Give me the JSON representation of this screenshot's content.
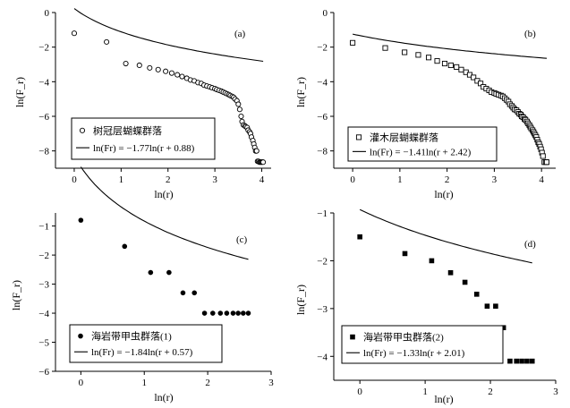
{
  "chart_data": [
    {
      "type": "scatter",
      "panel_label": "(a)",
      "xlabel": "ln(r)",
      "ylabel": "ln(F_r)",
      "xlim": [
        -0.4,
        4.2
      ],
      "ylim": [
        -9,
        0
      ],
      "xticks": [
        "0",
        "1",
        "2",
        "3",
        "4"
      ],
      "yticks": [
        "0",
        "−2",
        "−4",
        "−6",
        "−8"
      ],
      "marker": "open-circle",
      "legend": {
        "marker_label": "树冠层蝴蝶群落",
        "line_label": "ln(Fr) = −1.77ln(r + 0.88)"
      },
      "fit": {
        "a": -1.77,
        "b": 0.88
      },
      "series": [
        {
          "x": [
            0,
            0.69,
            1.1,
            1.39,
            1.61,
            1.79,
            1.95,
            2.08,
            2.2,
            2.3,
            2.4,
            2.48,
            2.56,
            2.64,
            2.71,
            2.77,
            2.83,
            2.89,
            2.94,
            3.0,
            3.04,
            3.09,
            3.14,
            3.18,
            3.22,
            3.26,
            3.3,
            3.33,
            3.37,
            3.4,
            3.43,
            3.47,
            3.5,
            3.53,
            3.56,
            3.58,
            3.61,
            3.64,
            3.66,
            3.69,
            3.71,
            3.74,
            3.76,
            3.78,
            3.81,
            3.83,
            3.85,
            3.87,
            3.89,
            3.91,
            3.93,
            3.95,
            3.97,
            3.99,
            4.01,
            4.03
          ],
          "y": [
            -1.2,
            -1.7,
            -2.95,
            -3.05,
            -3.2,
            -3.3,
            -3.4,
            -3.5,
            -3.6,
            -3.7,
            -3.8,
            -3.9,
            -3.95,
            -4.05,
            -4.1,
            -4.2,
            -4.25,
            -4.3,
            -4.35,
            -4.4,
            -4.45,
            -4.5,
            -4.55,
            -4.6,
            -4.65,
            -4.7,
            -4.75,
            -4.8,
            -4.85,
            -4.9,
            -5.0,
            -5.1,
            -5.3,
            -5.6,
            -6.0,
            -6.3,
            -6.5,
            -6.55,
            -6.6,
            -6.65,
            -6.8,
            -6.9,
            -7.0,
            -7.2,
            -7.4,
            -7.6,
            -7.8,
            -8.0,
            -8.0,
            -8.6,
            -8.6,
            -8.65,
            -8.65,
            -8.65,
            -8.65,
            -8.65
          ]
        }
      ]
    },
    {
      "type": "scatter",
      "panel_label": "(b)",
      "xlabel": "ln(r)",
      "ylabel": "ln(F_r)",
      "xlim": [
        -0.4,
        4.3
      ],
      "ylim": [
        -9,
        0
      ],
      "xticks": [
        "0",
        "1",
        "2",
        "3",
        "4"
      ],
      "yticks": [
        "0",
        "−2",
        "−4",
        "−6",
        "−8"
      ],
      "marker": "open-square",
      "legend": {
        "marker_label": "灌木层蝴蝶群落",
        "line_label": "ln(Fr) = −1.41ln(r + 2.42)"
      },
      "fit": {
        "a": -1.41,
        "b": 2.42
      },
      "series": [
        {
          "x": [
            0,
            0.69,
            1.1,
            1.39,
            1.61,
            1.79,
            1.95,
            2.08,
            2.2,
            2.3,
            2.4,
            2.48,
            2.56,
            2.64,
            2.71,
            2.77,
            2.83,
            2.89,
            2.94,
            3.0,
            3.04,
            3.09,
            3.14,
            3.18,
            3.22,
            3.26,
            3.3,
            3.33,
            3.37,
            3.4,
            3.43,
            3.47,
            3.5,
            3.53,
            3.56,
            3.58,
            3.61,
            3.64,
            3.66,
            3.69,
            3.71,
            3.74,
            3.76,
            3.78,
            3.81,
            3.83,
            3.85,
            3.87,
            3.89,
            3.91,
            3.93,
            3.95,
            3.97,
            3.99,
            4.01,
            4.03,
            4.06,
            4.09,
            4.11
          ],
          "y": [
            -1.75,
            -2.05,
            -2.3,
            -2.45,
            -2.6,
            -2.8,
            -2.95,
            -3.05,
            -3.15,
            -3.3,
            -3.45,
            -3.6,
            -3.75,
            -3.95,
            -4.1,
            -4.3,
            -4.4,
            -4.5,
            -4.6,
            -4.65,
            -4.7,
            -4.75,
            -4.8,
            -4.85,
            -4.95,
            -5.05,
            -5.15,
            -5.3,
            -5.4,
            -5.5,
            -5.6,
            -5.65,
            -5.75,
            -5.85,
            -5.9,
            -6.0,
            -6.05,
            -6.15,
            -6.2,
            -6.3,
            -6.4,
            -6.5,
            -6.6,
            -6.7,
            -6.8,
            -6.9,
            -7.0,
            -7.1,
            -7.2,
            -7.35,
            -7.5,
            -7.6,
            -7.75,
            -7.9,
            -8.1,
            -8.3,
            -8.65,
            -8.65,
            -8.65
          ]
        }
      ]
    },
    {
      "type": "scatter",
      "panel_label": "(c)",
      "xlabel": "ln(r)",
      "ylabel": "ln(F_r)",
      "xlim": [
        -0.4,
        3.0
      ],
      "ylim": [
        -6,
        -0.55
      ],
      "xticks": [
        "0",
        "1",
        "2",
        "3"
      ],
      "yticks": [
        "−1",
        "−2",
        "−3",
        "−4",
        "−5",
        "−6"
      ],
      "marker": "filled-circle",
      "legend": {
        "marker_label": "海岩带甲虫群落(1)",
        "line_label": "ln(Fr) = −1.84ln(r + 0.57)"
      },
      "fit": {
        "a": -1.84,
        "b": 0.57
      },
      "series": [
        {
          "x": [
            0,
            0.69,
            1.1,
            1.39,
            1.61,
            1.79,
            1.95,
            2.08,
            2.2,
            2.3,
            2.4,
            2.48,
            2.56,
            2.64
          ],
          "y": [
            -0.8,
            -1.7,
            -2.6,
            -2.6,
            -3.3,
            -3.3,
            -4.0,
            -4.0,
            -4.0,
            -4.0,
            -4.0,
            -4.0,
            -4.0,
            -4.0
          ]
        }
      ]
    },
    {
      "type": "scatter",
      "panel_label": "(d)",
      "xlabel": "ln(r)",
      "ylabel": "ln(F_r)",
      "xlim": [
        -0.4,
        3.0
      ],
      "ylim": [
        -4.5,
        -1.0
      ],
      "xticks": [
        "0",
        "1",
        "2",
        "3"
      ],
      "yticks": [
        "−1",
        "−2",
        "−3",
        "−4"
      ],
      "marker": "filled-square",
      "legend": {
        "marker_label": "海岩带甲虫群落(2)",
        "line_label": "ln(Fr) = −1.33ln(r + 2.01)"
      },
      "fit": {
        "a": -1.33,
        "b": 2.01
      },
      "series": [
        {
          "x": [
            0,
            0.69,
            1.1,
            1.39,
            1.61,
            1.79,
            1.95,
            2.08,
            2.2,
            2.3,
            2.4,
            2.48,
            2.56,
            2.64
          ],
          "y": [
            -1.5,
            -1.85,
            -2.0,
            -2.25,
            -2.45,
            -2.7,
            -2.95,
            -2.95,
            -3.4,
            -4.1,
            -4.1,
            -4.1,
            -4.1,
            -4.1
          ]
        }
      ]
    }
  ]
}
